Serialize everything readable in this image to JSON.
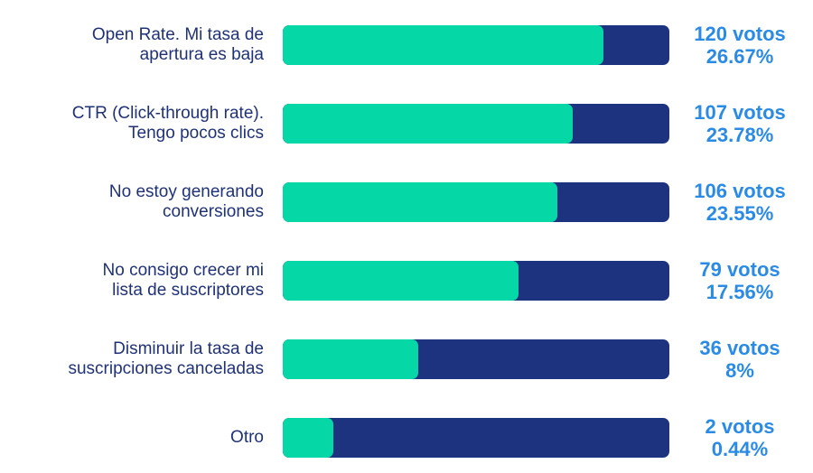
{
  "colors": {
    "fill": "#05d7a6",
    "track": "#1e3380",
    "label_text": "#1f3278",
    "value_text": "#2a8be6"
  },
  "chart_data": {
    "type": "bar",
    "orientation": "horizontal",
    "categories": [
      "Open Rate. Mi tasa de\napertura es baja",
      "CTR (Click-through rate).\nTengo pocos clics",
      "No estoy generando\nconversiones",
      "No consigo crecer mi\nlista de suscriptores",
      "Disminuir la tasa de\nsuscripciones canceladas",
      "Otro"
    ],
    "values": [
      120,
      107,
      106,
      79,
      36,
      2
    ],
    "vote_labels": [
      "120 votos",
      "107 votos",
      "106 votos",
      "79 votos",
      "36 votos",
      "2 votos"
    ],
    "percent_labels": [
      "26.67%",
      "23.78%",
      "23.55%",
      "17.56%",
      "8%",
      "0.44%"
    ],
    "bar_fill_fraction": [
      0.83,
      0.75,
      0.71,
      0.61,
      0.35,
      0.13
    ],
    "title": "",
    "xlabel": "",
    "ylabel": "",
    "grid": false,
    "legend": "none"
  }
}
